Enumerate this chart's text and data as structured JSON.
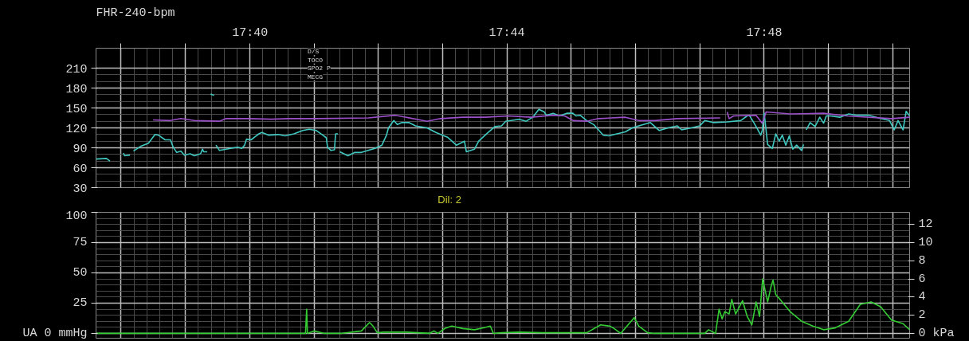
{
  "chart_data": [
    {
      "type": "line",
      "title": "FHR-240-bpm",
      "xlim": [
        17.6268,
        17.8377
      ],
      "xticks": [
        {
          "value": 17.6333,
          "label": null
        },
        {
          "value": 17.65,
          "label": null
        },
        {
          "value": 17.6667,
          "label": "17:40"
        },
        {
          "value": 17.6833,
          "label": null
        },
        {
          "value": 17.7,
          "label": null
        },
        {
          "value": 17.7167,
          "label": null
        },
        {
          "value": 17.7333,
          "label": "17:44"
        },
        {
          "value": 17.75,
          "label": null
        },
        {
          "value": 17.7667,
          "label": null
        },
        {
          "value": 17.7833,
          "label": null
        },
        {
          "value": 17.8,
          "label": "17:48"
        },
        {
          "value": 17.8167,
          "label": null
        },
        {
          "value": 17.8333,
          "label": null
        }
      ],
      "ylim": [
        30,
        240
      ],
      "yticks": [
        30,
        60,
        90,
        120,
        150,
        180,
        210
      ],
      "grid": true,
      "annotations": [
        "Dil: 2",
        "D/S",
        "TOCO",
        "SPO2 P",
        "MECG"
      ],
      "series": [
        {
          "color": "#40c8c0",
          "x": [
            17.6268,
            17.6295,
            17.6304,
            17.632,
            17.6339,
            17.6342,
            17.6356,
            17.636,
            17.6365,
            17.6383,
            17.6404,
            17.6421,
            17.643,
            17.6447,
            17.6461,
            17.6468,
            17.6477,
            17.6488,
            17.6497,
            17.6512,
            17.6523,
            17.6539,
            17.6544,
            17.6547,
            17.6556,
            17.656,
            17.6565,
            17.6574,
            17.6576,
            17.6579,
            17.6588,
            17.6605,
            17.6635,
            17.6646,
            17.6653,
            17.6658,
            17.667,
            17.6681,
            17.669,
            17.6698,
            17.6716,
            17.674,
            17.6758,
            17.6781,
            17.6804,
            17.6821,
            17.6839,
            17.6856,
            17.6865,
            17.6868,
            17.6877,
            17.6886,
            17.6889,
            17.6895,
            17.6897,
            17.69,
            17.6921,
            17.6939,
            17.6956,
            17.6991,
            17.7009,
            17.7021,
            17.7026,
            17.704,
            17.7049,
            17.7061,
            17.7079,
            17.7096,
            17.7126,
            17.7149,
            17.7179,
            17.7202,
            17.7223,
            17.7228,
            17.7249,
            17.726,
            17.7284,
            17.7302,
            17.7319,
            17.733,
            17.7365,
            17.7383,
            17.74,
            17.7416,
            17.743,
            17.7435,
            17.7453,
            17.747,
            17.7488,
            17.7504,
            17.7512,
            17.7523,
            17.754,
            17.7558,
            17.7583,
            17.7597,
            17.7618,
            17.764,
            17.7658,
            17.7675,
            17.7705,
            17.7728,
            17.7751,
            17.7775,
            17.7786,
            17.7811,
            17.7833,
            17.7846,
            17.7868,
            17.7904,
            17.7939,
            17.7956,
            17.7961,
            17.797,
            17.7979,
            17.7991,
            17.7995,
            17.8,
            17.8009,
            17.8021,
            17.803,
            17.8039,
            17.8047,
            17.8056,
            17.8065,
            17.8074,
            17.8084,
            17.8097,
            17.8102,
            17.8105,
            17.8109,
            17.8119,
            17.8132,
            17.8144,
            17.8154,
            17.8161,
            17.8172,
            17.8196,
            17.8219,
            17.8242,
            17.8272,
            17.8302,
            17.8325,
            17.8337,
            17.8347,
            17.836,
            17.8368,
            17.8377
          ],
          "values": [
            73,
            74,
            70,
            null,
            82,
            78,
            79,
            null,
            85,
            92,
            97,
            110,
            109,
            102,
            102,
            91,
            83,
            85,
            79,
            81,
            78,
            81,
            88,
            84,
            84,
            null,
            171,
            169,
            null,
            94,
            86,
            88,
            91,
            89,
            94,
            103,
            102,
            107,
            111,
            113,
            109,
            110,
            108,
            111,
            116,
            118,
            116,
            109,
            105,
            91,
            86,
            87,
            111,
            111,
            null,
            84,
            78,
            83,
            83,
            89,
            94,
            109,
            120,
            131,
            125,
            128,
            128,
            123,
            120,
            113,
            106,
            94,
            100,
            84,
            88,
            100,
            113,
            122,
            123,
            130,
            133,
            130,
            136,
            148,
            144,
            139,
            142,
            138,
            142,
            142,
            138,
            139,
            131,
            125,
            109,
            108,
            111,
            114,
            120,
            123,
            128,
            116,
            120,
            123,
            117,
            120,
            123,
            131,
            128,
            129,
            131,
            138,
            139,
            131,
            122,
            109,
            116,
            142,
            95,
            89,
            111,
            100,
            109,
            94,
            108,
            88,
            94,
            86,
            95,
            null,
            117,
            128,
            122,
            136,
            127,
            138,
            138,
            136,
            141,
            139,
            139,
            134,
            131,
            117,
            131,
            117,
            145,
            138
          ]
        },
        {
          "color": "#9b50c8",
          "x": [
            17.6416,
            17.646,
            17.6488,
            17.6523,
            17.6588,
            17.6605,
            17.6663,
            17.6723,
            17.6768,
            17.6839,
            17.6974,
            17.7044,
            17.7126,
            17.7161,
            17.7219,
            17.7277,
            17.7337,
            17.7395,
            17.7453,
            17.7483,
            17.7505,
            17.754,
            17.757,
            17.764,
            17.7675,
            17.7716,
            17.7775,
            17.7886,
            17.7895,
            17.7904,
            17.7909,
            17.7921,
            17.7979,
            17.7995,
            17.8005,
            17.8067,
            17.8154,
            17.8214,
            17.833,
            17.8377
          ],
          "values": [
            132,
            131,
            134,
            131,
            130,
            134,
            134,
            133,
            134,
            134,
            135,
            139,
            130,
            134,
            136,
            136,
            138,
            136,
            139,
            138,
            131,
            130,
            134,
            136,
            131,
            131,
            134,
            135,
            null,
            144,
            134,
            138,
            139,
            127,
            144,
            141,
            142,
            138,
            134,
            136
          ]
        }
      ]
    },
    {
      "type": "line",
      "tick_labels": "y",
      "xlim": [
        17.6268,
        17.8377
      ],
      "xticks": [
        {
          "value": 17.6333,
          "label": null
        },
        {
          "value": 17.65,
          "label": null
        },
        {
          "value": 17.6667,
          "label": null
        },
        {
          "value": 17.6833,
          "label": null
        },
        {
          "value": 17.7,
          "label": null
        },
        {
          "value": 17.7167,
          "label": null
        },
        {
          "value": 17.7333,
          "label": null
        },
        {
          "value": 17.75,
          "label": null
        },
        {
          "value": 17.7667,
          "label": null
        },
        {
          "value": 17.7833,
          "label": null
        },
        {
          "value": 17.8,
          "label": null
        },
        {
          "value": 17.8167,
          "label": null
        },
        {
          "value": 17.8333,
          "label": null
        }
      ],
      "ylim": [
        -4,
        100
      ],
      "yticks": [
        {
          "value": 0,
          "label": "UA 0 mmHg"
        },
        25,
        50,
        75,
        100
      ],
      "y2lim": [
        -0.53,
        13.33
      ],
      "y2ticks": [
        {
          "value": 0,
          "label": "0 kPa"
        },
        2,
        4,
        6,
        8,
        10,
        12
      ],
      "grid": true,
      "series": [
        {
          "color": "#33cc33",
          "x": [
            17.6268,
            17.6811,
            17.6814,
            17.6816,
            17.6833,
            17.686,
            17.6903,
            17.6956,
            17.6977,
            17.6986,
            17.6997,
            17.7014,
            17.7074,
            17.7132,
            17.7144,
            17.7154,
            17.7172,
            17.719,
            17.7219,
            17.7249,
            17.7272,
            17.729,
            17.7298,
            17.7319,
            17.7365,
            17.7425,
            17.7483,
            17.754,
            17.7576,
            17.76,
            17.7611,
            17.7628,
            17.7663,
            17.7675,
            17.7698,
            17.7716,
            17.7846,
            17.7856,
            17.7874,
            17.7883,
            17.7891,
            17.7898,
            17.7909,
            17.7916,
            17.7926,
            17.7944,
            17.7956,
            17.7968,
            17.7979,
            17.7988,
            17.7996,
            17.8009,
            17.8018,
            17.8023,
            17.803,
            17.8044,
            17.8067,
            17.8097,
            17.8126,
            17.8154,
            17.8184,
            17.8219,
            17.8249,
            17.8277,
            17.8302,
            17.833,
            17.836,
            17.8377
          ],
          "values": [
            0,
            0,
            20,
            0,
            2,
            0,
            0,
            2,
            9,
            6,
            0.5,
            1,
            1,
            0,
            2,
            0,
            4,
            6,
            4,
            3,
            4.5,
            6,
            0,
            0.5,
            1,
            0.5,
            0.5,
            0.5,
            7,
            6,
            4,
            0,
            13,
            6,
            0.5,
            0,
            0,
            3,
            0,
            20,
            12,
            18,
            16,
            28,
            16,
            27,
            14,
            7,
            26,
            14,
            45,
            26,
            39,
            44,
            32,
            27,
            18,
            10,
            6,
            3,
            4.5,
            10,
            24,
            26,
            22,
            11,
            8,
            3
          ]
        }
      ]
    }
  ]
}
